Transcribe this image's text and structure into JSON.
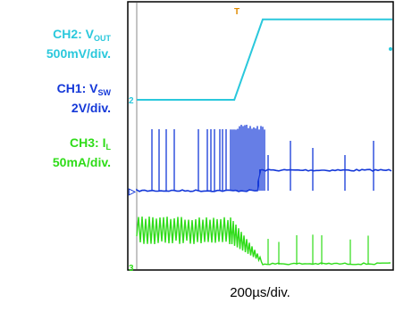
{
  "chart_data": {
    "type": "line",
    "xlabel": "200µs/div.",
    "x_unit": "µs",
    "xlim": [
      0,
      1440
    ],
    "channels": [
      {
        "id": "CH2",
        "prefix": "CH2: V",
        "sub": "OUT",
        "scale": "500mV/div.",
        "color": "#2ac8dc",
        "marker": "2",
        "description": "output voltage ramp",
        "points": [
          [
            0,
            0
          ],
          [
            550,
            0
          ],
          [
            710,
            2.05
          ],
          [
            1440,
            2.05
          ]
        ],
        "unit": "V"
      },
      {
        "id": "CH1",
        "prefix": "CH1: V",
        "sub": "SW",
        "scale": "2V/div.",
        "color": "#1438d8",
        "marker": "1",
        "description": "switch node voltage pulses"
      },
      {
        "id": "CH3",
        "prefix": "CH3: I",
        "sub": "L",
        "scale": "50mA/div.",
        "color": "#2edc18",
        "marker": "3",
        "description": "inductor current"
      }
    ],
    "trigger_marker": "T",
    "grid": false
  }
}
